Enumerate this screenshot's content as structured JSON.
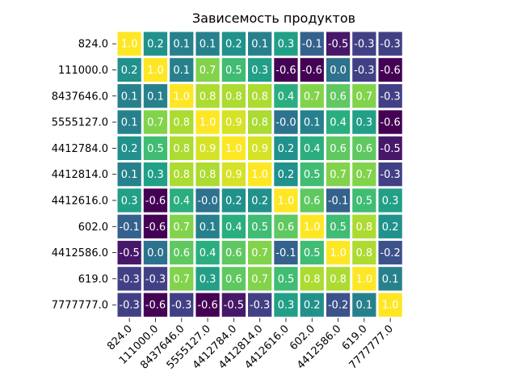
{
  "chart_data": {
    "type": "heatmap",
    "title": "Зависемость продуктов",
    "colormap": "viridis",
    "vmin": -0.6,
    "vmax": 1.0,
    "x_labels": [
      "824.0",
      "111000.0",
      "8437646.0",
      "5555127.0",
      "4412784.0",
      "4412814.0",
      "4412616.0",
      "602.0",
      "4412586.0",
      "619.0",
      "7777777.0"
    ],
    "y_labels": [
      "824.0",
      "111000.0",
      "8437646.0",
      "5555127.0",
      "4412784.0",
      "4412814.0",
      "4412616.0",
      "602.0",
      "4412586.0",
      "619.0",
      "7777777.0"
    ],
    "values": [
      [
        1.0,
        0.2,
        0.1,
        0.1,
        0.2,
        0.1,
        0.3,
        -0.1,
        -0.5,
        -0.3,
        -0.3
      ],
      [
        0.2,
        1.0,
        0.1,
        0.7,
        0.5,
        0.3,
        -0.6,
        -0.6,
        0.0,
        -0.3,
        -0.6
      ],
      [
        0.1,
        0.1,
        1.0,
        0.8,
        0.8,
        0.8,
        0.4,
        0.7,
        0.6,
        0.7,
        -0.3
      ],
      [
        0.1,
        0.7,
        0.8,
        1.0,
        0.9,
        0.8,
        -0.0,
        0.1,
        0.4,
        0.3,
        -0.6
      ],
      [
        0.2,
        0.5,
        0.8,
        0.9,
        1.0,
        0.9,
        0.2,
        0.4,
        0.6,
        0.6,
        -0.5
      ],
      [
        0.1,
        0.3,
        0.8,
        0.8,
        0.9,
        1.0,
        0.2,
        0.5,
        0.7,
        0.7,
        -0.3
      ],
      [
        0.3,
        -0.6,
        0.4,
        -0.0,
        0.2,
        0.2,
        1.0,
        0.6,
        -0.1,
        0.5,
        0.3
      ],
      [
        -0.1,
        -0.6,
        0.7,
        0.1,
        0.4,
        0.5,
        0.6,
        1.0,
        0.5,
        0.8,
        0.2
      ],
      [
        -0.5,
        0.0,
        0.6,
        0.4,
        0.6,
        0.7,
        -0.1,
        0.5,
        1.0,
        0.8,
        -0.2
      ],
      [
        -0.3,
        -0.3,
        0.7,
        0.3,
        0.6,
        0.7,
        0.5,
        0.8,
        0.8,
        1.0,
        0.1
      ],
      [
        -0.3,
        -0.6,
        -0.3,
        -0.6,
        -0.5,
        -0.3,
        0.3,
        0.2,
        -0.2,
        0.1,
        1.0
      ]
    ],
    "annotated": true,
    "value_format": "0.1f",
    "cell_border_color": "#ffffff"
  }
}
